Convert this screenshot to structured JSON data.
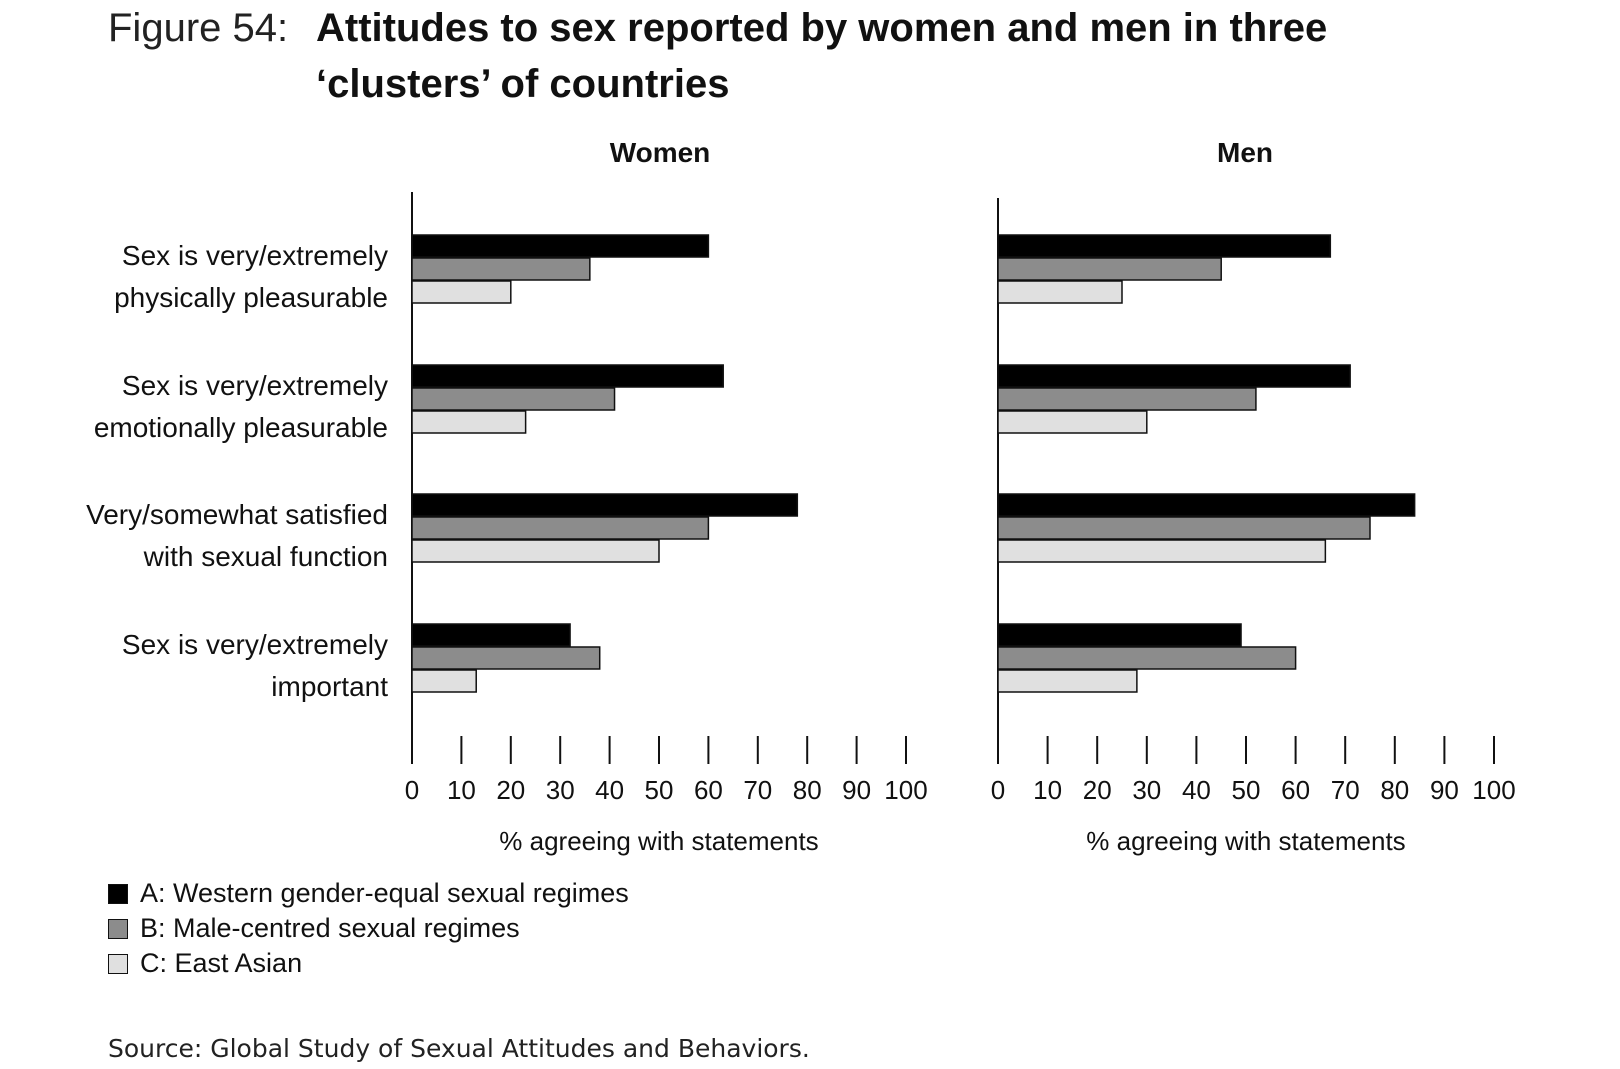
{
  "figure": {
    "label": "Figure 54:",
    "title": "Attitudes to sex reported by women and men in three ‘clusters’ of countries"
  },
  "chart_data": {
    "type": "bar",
    "orientation": "horizontal",
    "categories": [
      [
        "Sex is very/extremely",
        "physically pleasurable"
      ],
      [
        "Sex is very/extremely",
        "emotionally pleasurable"
      ],
      [
        "Very/somewhat satisfied",
        "with sexual function"
      ],
      [
        "Sex is very/extremely",
        "important"
      ]
    ],
    "legend": [
      {
        "label": "A: Western gender-equal sexual regimes",
        "color": "#000000"
      },
      {
        "label": "B: Male-centred sexual regimes",
        "color": "#8c8c8c"
      },
      {
        "label": "C: East Asian",
        "color": "#e0e0e0"
      }
    ],
    "xlim": [
      0,
      100
    ],
    "xticks": [
      0,
      10,
      20,
      30,
      40,
      50,
      60,
      70,
      80,
      90,
      100
    ],
    "grid": false,
    "legend_placement": "bottom-left",
    "panels": [
      {
        "title": "Women",
        "xlabel": "% agreeing with statements",
        "series": [
          {
            "values": [
              60,
              63,
              78,
              32
            ]
          },
          {
            "values": [
              36,
              41,
              60,
              38
            ]
          },
          {
            "values": [
              20,
              23,
              50,
              13
            ]
          }
        ]
      },
      {
        "title": "Men",
        "xlabel": "% agreeing with statements",
        "series": [
          {
            "values": [
              67,
              71,
              84,
              49
            ]
          },
          {
            "values": [
              45,
              52,
              75,
              60
            ]
          },
          {
            "values": [
              25,
              30,
              66,
              28
            ]
          }
        ]
      }
    ]
  },
  "source": "Source: Global Study of Sexual Attitudes and Behaviors."
}
